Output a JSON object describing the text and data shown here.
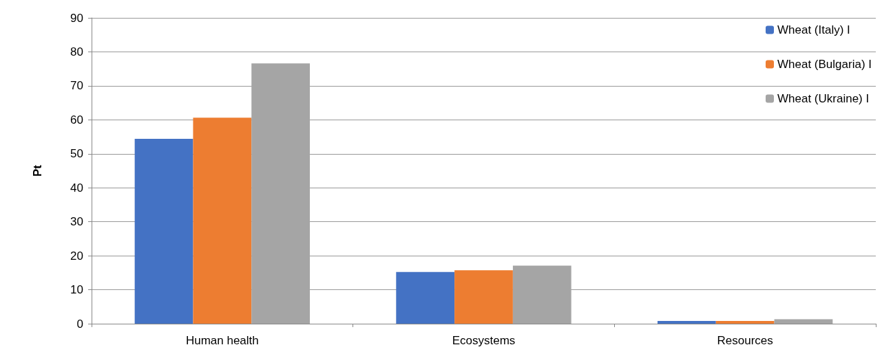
{
  "chart_data": {
    "type": "bar",
    "ylabel": "Pt",
    "categories": [
      "Human health",
      "Ecosystems",
      "Resources"
    ],
    "series": [
      {
        "name": "Wheat (Italy) I",
        "color": "#4472c4",
        "values": [
          54.4,
          15.2,
          0.8
        ]
      },
      {
        "name": "Wheat (Bulgaria) I",
        "color": "#ed7d31",
        "values": [
          60.6,
          15.7,
          0.8
        ]
      },
      {
        "name": "Wheat (Ukraine) I",
        "color": "#a5a5a5",
        "values": [
          76.6,
          17.1,
          1.3
        ]
      }
    ],
    "ylim": [
      0,
      90
    ],
    "yticks": [
      0,
      10,
      20,
      30,
      40,
      50,
      60,
      70,
      80,
      90
    ],
    "grid": "y",
    "legend": "top right"
  }
}
